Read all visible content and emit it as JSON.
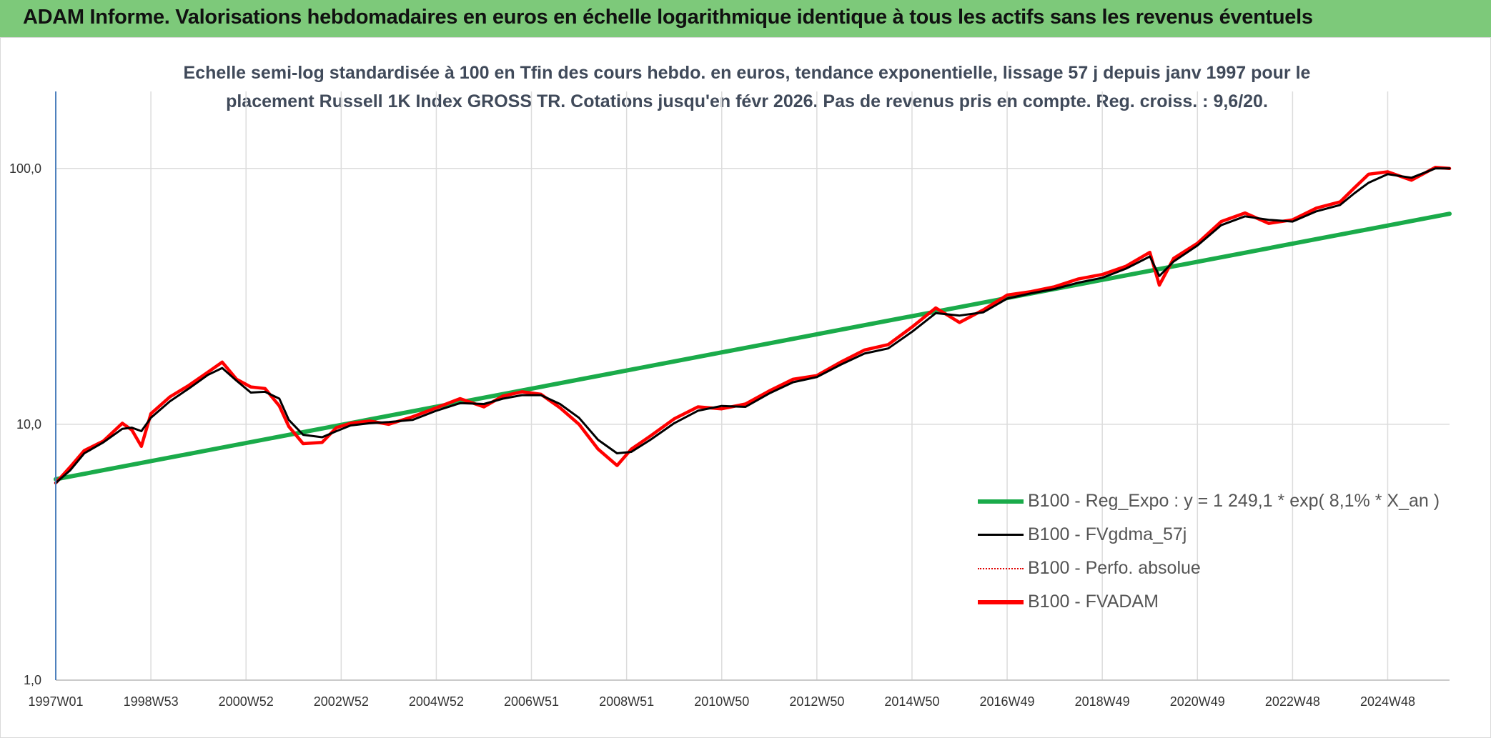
{
  "header": {
    "title": "ADAM Informe. Valorisations hebdomadaires en euros en échelle logarithmique identique à tous les actifs sans les revenus éventuels"
  },
  "subtitle": {
    "line1": "Echelle semi-log standardisée à 100 en Tfin des cours hebdo. en euros, tendance exponentielle, lissage 57 j depuis janv 1997 pour le",
    "line2": "placement Russell 1K Index GROSS TR. Cotations jusqu'en févr 2026. Pas de revenus pris en compte. Reg. croiss. : 9,6/20."
  },
  "colors": {
    "header_bg": "#7dc97a",
    "trend": "#1aab4a",
    "smooth": "#000000",
    "absolute": "#e00000",
    "adam": "#ff0000",
    "grid": "#dcdcdc"
  },
  "chart_data": {
    "type": "line",
    "yscale": "log",
    "ylim": [
      1,
      200
    ],
    "x_tick_labels": [
      "1997W01",
      "1998W53",
      "2000W52",
      "2002W52",
      "2004W52",
      "2006W51",
      "2008W51",
      "2010W50",
      "2012W50",
      "2014W50",
      "2016W49",
      "2018W49",
      "2020W49",
      "2022W48",
      "2024W48"
    ],
    "x_tick_years": [
      1997.0,
      1999.0,
      2001.0,
      2003.0,
      2005.0,
      2007.0,
      2009.0,
      2011.0,
      2013.0,
      2015.0,
      2017.0,
      2019.0,
      2021.0,
      2023.0,
      2025.0
    ],
    "y_ticks": [
      1,
      10,
      100
    ],
    "y_tick_labels": [
      "1,0",
      "10,0",
      "100,0"
    ],
    "xlim": [
      1997.0,
      2026.3
    ],
    "series": [
      {
        "name": "B100 - Reg_Expo : y = 1 249,1 * exp( 8,1% *  X_an )",
        "key": "trend",
        "x": [
          1997.0,
          2026.3
        ],
        "y": [
          6.1,
          66.5
        ]
      },
      {
        "name": "B100 - FVgdma_57j",
        "key": "smooth",
        "x": [
          1997.0,
          1997.3,
          1997.6,
          1998.0,
          1998.4,
          1998.6,
          1998.8,
          1999.0,
          1999.4,
          1999.8,
          2000.2,
          2000.5,
          2000.8,
          2001.1,
          2001.4,
          2001.7,
          2001.9,
          2002.2,
          2002.6,
          2002.9,
          2003.2,
          2003.6,
          2004.0,
          2004.5,
          2005.0,
          2005.5,
          2006.0,
          2006.4,
          2006.8,
          2007.2,
          2007.6,
          2008.0,
          2008.4,
          2008.8,
          2009.1,
          2009.5,
          2010.0,
          2010.5,
          2011.0,
          2011.5,
          2012.0,
          2012.5,
          2013.0,
          2013.5,
          2014.0,
          2014.5,
          2015.0,
          2015.5,
          2016.0,
          2016.5,
          2017.0,
          2017.5,
          2018.0,
          2018.5,
          2019.0,
          2019.5,
          2020.0,
          2020.2,
          2020.5,
          2021.0,
          2021.5,
          2022.0,
          2022.5,
          2023.0,
          2023.5,
          2024.0,
          2024.3,
          2024.6,
          2025.0,
          2025.5,
          2026.0,
          2026.3
        ],
        "y": [
          5.9,
          6.6,
          7.7,
          8.5,
          9.6,
          9.7,
          9.4,
          10.6,
          12.3,
          13.8,
          15.6,
          16.6,
          14.8,
          13.3,
          13.4,
          12.6,
          10.4,
          9.1,
          8.9,
          9.4,
          9.9,
          10.1,
          10.2,
          10.4,
          11.3,
          12.1,
          12.0,
          12.6,
          13.0,
          13.0,
          12.0,
          10.6,
          8.7,
          7.7,
          7.8,
          8.7,
          10.1,
          11.3,
          11.8,
          11.7,
          13.2,
          14.6,
          15.3,
          17.1,
          18.9,
          19.8,
          23.0,
          27.2,
          26.6,
          27.4,
          31.0,
          32.5,
          33.8,
          35.8,
          37.4,
          40.6,
          45.3,
          38.0,
          43.3,
          50.0,
          60.0,
          65.0,
          63.0,
          62.0,
          68.0,
          72.0,
          80.0,
          88.0,
          95.0,
          92.0,
          100.0,
          100.0
        ]
      },
      {
        "name": "B100 - Perfo. absolue",
        "key": "absolute",
        "x": [],
        "y": []
      },
      {
        "name": "B100 - FVADAM",
        "key": "adam",
        "x": [
          1997.0,
          1997.3,
          1997.6,
          1998.0,
          1998.4,
          1998.6,
          1998.8,
          1999.0,
          1999.4,
          1999.8,
          2000.2,
          2000.5,
          2000.8,
          2001.1,
          2001.4,
          2001.7,
          2001.9,
          2002.2,
          2002.6,
          2002.9,
          2003.2,
          2003.6,
          2004.0,
          2004.5,
          2005.0,
          2005.5,
          2006.0,
          2006.4,
          2006.8,
          2007.2,
          2007.6,
          2008.0,
          2008.4,
          2008.8,
          2009.1,
          2009.5,
          2010.0,
          2010.5,
          2011.0,
          2011.5,
          2012.0,
          2012.5,
          2013.0,
          2013.5,
          2014.0,
          2014.5,
          2015.0,
          2015.5,
          2016.0,
          2016.5,
          2017.0,
          2017.5,
          2018.0,
          2018.5,
          2019.0,
          2019.5,
          2020.0,
          2020.2,
          2020.5,
          2021.0,
          2021.5,
          2022.0,
          2022.5,
          2023.0,
          2023.5,
          2024.0,
          2024.3,
          2024.6,
          2025.0,
          2025.5,
          2026.0,
          2026.3
        ],
        "y": [
          5.9,
          6.8,
          7.9,
          8.6,
          10.1,
          9.5,
          8.2,
          11.0,
          12.8,
          14.2,
          16.0,
          17.5,
          15.0,
          14.0,
          13.8,
          11.8,
          9.8,
          8.4,
          8.5,
          9.7,
          10.1,
          10.3,
          10.0,
          10.7,
          11.6,
          12.6,
          11.7,
          12.9,
          13.4,
          13.1,
          11.6,
          10.0,
          8.0,
          6.9,
          8.0,
          9.0,
          10.5,
          11.7,
          11.5,
          12.0,
          13.5,
          15.0,
          15.5,
          17.5,
          19.5,
          20.5,
          24.0,
          28.5,
          25.0,
          28.0,
          32.0,
          33.0,
          34.5,
          37.0,
          38.5,
          41.5,
          47.0,
          35.0,
          44.5,
          51.0,
          62.0,
          67.0,
          61.0,
          63.0,
          70.0,
          74.0,
          84.0,
          95.0,
          97.0,
          90.0,
          101.0,
          100.0
        ]
      }
    ]
  }
}
